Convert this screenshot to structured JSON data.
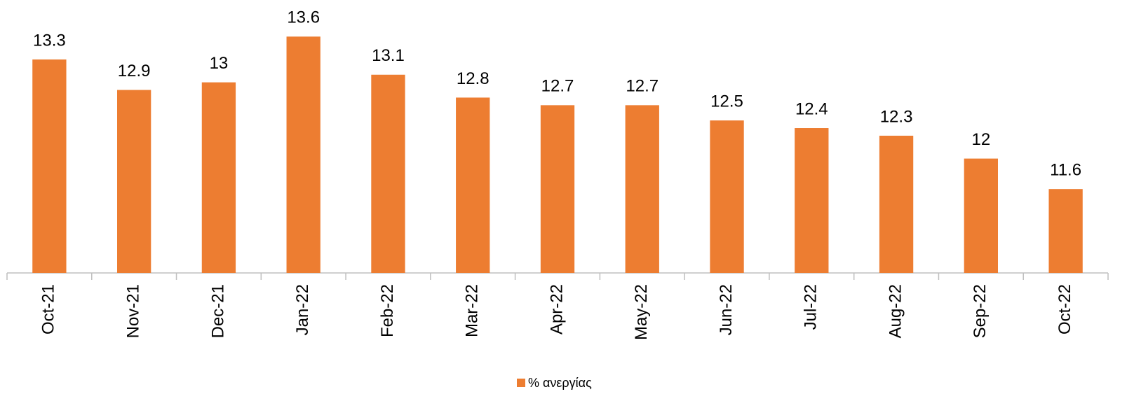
{
  "chart_data": {
    "type": "bar",
    "categories": [
      "Oct-21",
      "Nov-21",
      "Dec-21",
      "Jan-22",
      "Feb-22",
      "Mar-22",
      "Apr-22",
      "May-22",
      "Jun-22",
      "Jul-22",
      "Aug-22",
      "Sep-22",
      "Oct-22"
    ],
    "series": [
      {
        "name": "% ανεργίας",
        "color": "#ed7d31",
        "values": [
          13.3,
          12.9,
          13,
          13.6,
          13.1,
          12.8,
          12.7,
          12.7,
          12.5,
          12.4,
          12.3,
          12,
          11.6
        ]
      }
    ],
    "ylim": [
      10.5,
      14.08
    ],
    "legend": "bottom"
  }
}
